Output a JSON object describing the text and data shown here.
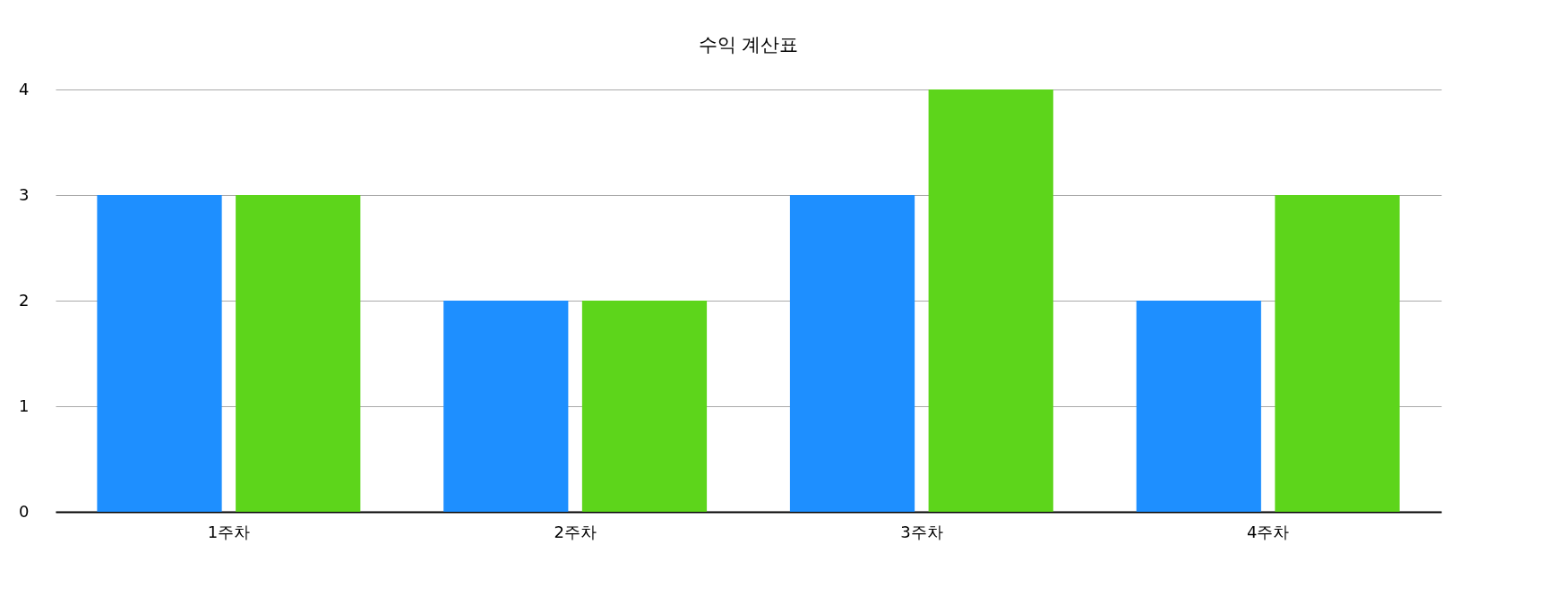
{
  "chart_data": {
    "type": "bar",
    "title": "수익 계산표",
    "categories": [
      "1주차",
      "2주차",
      "3주차",
      "4주차"
    ],
    "series": [
      {
        "color": "#1e8fff",
        "values": [
          3,
          2,
          3,
          2
        ]
      },
      {
        "color": "#5dd51b",
        "values": [
          3,
          2,
          4,
          3
        ]
      }
    ],
    "ylim": [
      0,
      4
    ],
    "yticks": [
      0,
      1,
      2,
      3,
      4
    ],
    "grid": "y",
    "legend": false
  }
}
